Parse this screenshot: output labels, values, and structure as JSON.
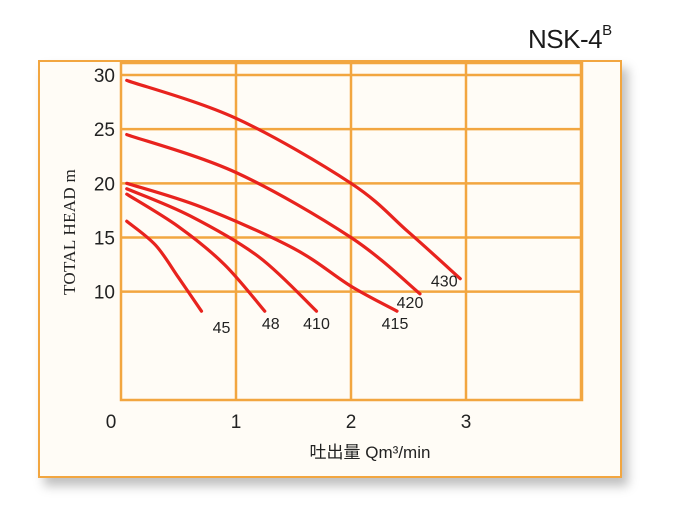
{
  "title": {
    "text": "NSK-4",
    "sup": "B"
  },
  "chart_data": {
    "type": "line",
    "title": "NSK-4B",
    "xlabel": "吐出量 Qm³/min",
    "ylabel": "TOTAL HEAD m",
    "xlim": [
      0,
      4.5
    ],
    "ylim": [
      0,
      30
    ],
    "x_ticks": [
      0,
      1,
      2,
      3
    ],
    "y_ticks": [
      10,
      15,
      20,
      25,
      30
    ],
    "grid": true,
    "series": [
      {
        "name": "45",
        "x": [
          0.05,
          0.3,
          0.5,
          0.7
        ],
        "y": [
          16.5,
          14.3,
          11.3,
          8.2
        ]
      },
      {
        "name": "48",
        "x": [
          0.05,
          0.5,
          0.9,
          1.25
        ],
        "y": [
          19.0,
          16.0,
          12.5,
          8.2
        ]
      },
      {
        "name": "410",
        "x": [
          0.05,
          0.6,
          1.2,
          1.7
        ],
        "y": [
          19.5,
          17.0,
          13.2,
          8.2
        ]
      },
      {
        "name": "415",
        "x": [
          0.05,
          0.7,
          1.5,
          2.0,
          2.4
        ],
        "y": [
          20.0,
          17.8,
          14.0,
          10.5,
          8.2
        ]
      },
      {
        "name": "420",
        "x": [
          0.05,
          1.0,
          2.0,
          2.6
        ],
        "y": [
          24.5,
          21.0,
          15.0,
          9.8
        ]
      },
      {
        "name": "430",
        "x": [
          0.05,
          1.0,
          2.0,
          2.5,
          2.95
        ],
        "y": [
          29.5,
          26.0,
          20.0,
          15.5,
          11.2
        ]
      }
    ]
  }
}
